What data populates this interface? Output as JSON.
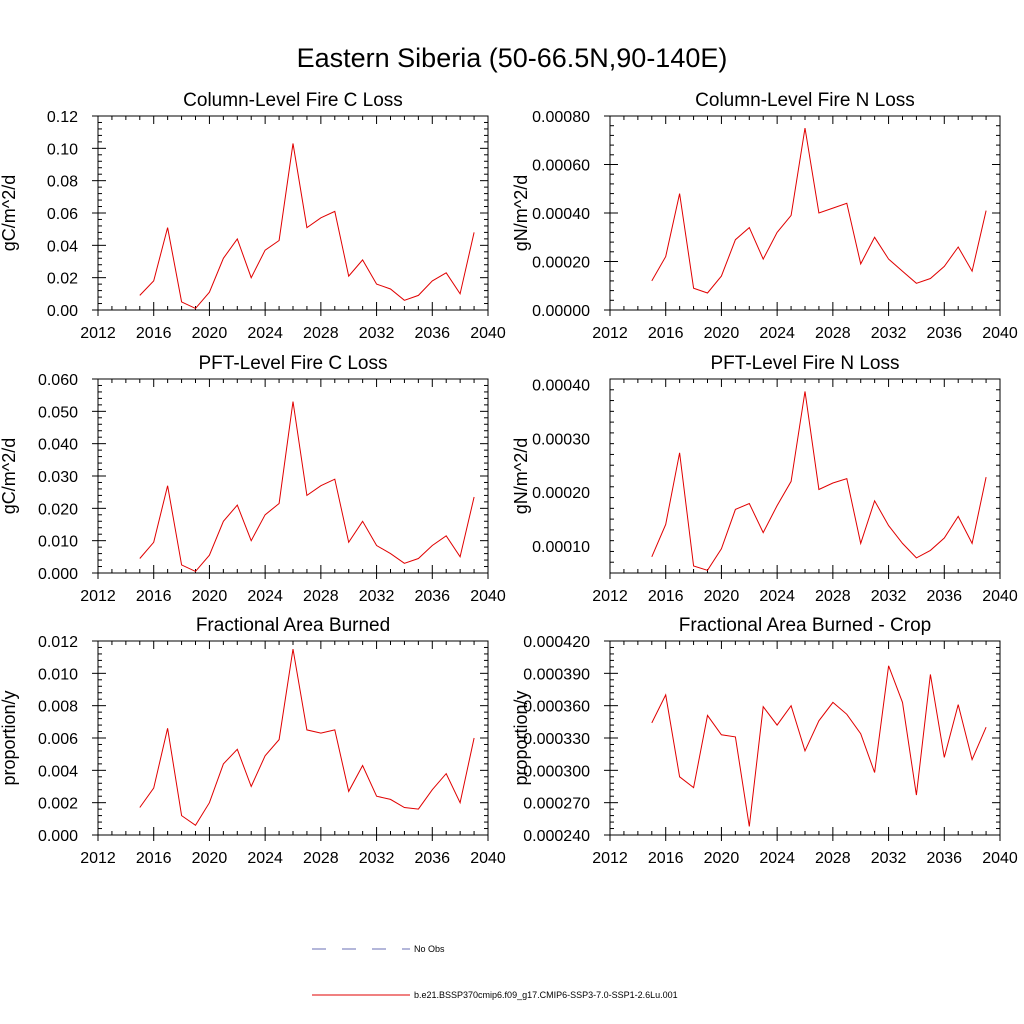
{
  "figure": {
    "title": "Eastern Siberia (50-66.5N,90-140E)",
    "legend": [
      {
        "label": "No Obs",
        "color": "#6a6fb5",
        "style": "dashed"
      },
      {
        "label": "b.e21.BSSP370cmip6.f09_g17.CMIP6-SSP3-7.0-SSP1-2.6Lu.001",
        "color": "#e00000",
        "style": "solid"
      }
    ]
  },
  "chart_data": [
    {
      "type": "line",
      "title": "Column-Level Fire C Loss",
      "ylabel": "gC/m^2/d",
      "xlim": [
        2012,
        2040
      ],
      "xticks": [
        "2012",
        "2016",
        "2020",
        "2024",
        "2028",
        "2032",
        "2036",
        "2040"
      ],
      "ylim": [
        0,
        0.12
      ],
      "yticks": [
        "0.00",
        "0.02",
        "0.04",
        "0.06",
        "0.08",
        "0.10",
        "0.12"
      ],
      "line_color": "#e00000",
      "x": [
        2015,
        2016,
        2017,
        2018,
        2019,
        2020,
        2021,
        2022,
        2023,
        2024,
        2025,
        2026,
        2027,
        2028,
        2029,
        2030,
        2031,
        2032,
        2033,
        2034,
        2035,
        2036,
        2037,
        2038,
        2039
      ],
      "series": [
        {
          "values": [
            0.009,
            0.018,
            0.051,
            0.005,
            0.001,
            0.011,
            0.032,
            0.044,
            0.02,
            0.037,
            0.043,
            0.103,
            0.051,
            0.057,
            0.061,
            0.021,
            0.031,
            0.016,
            0.013,
            0.006,
            0.009,
            0.018,
            0.023,
            0.01,
            0.048
          ]
        }
      ]
    },
    {
      "type": "line",
      "title": "Column-Level Fire N Loss",
      "ylabel": "gN/m^2/d",
      "xlim": [
        2012,
        2040
      ],
      "xticks": [
        "2012",
        "2016",
        "2020",
        "2024",
        "2028",
        "2032",
        "2036",
        "2040"
      ],
      "ylim": [
        0,
        0.0008
      ],
      "yticks": [
        "0.00000",
        "0.00020",
        "0.00040",
        "0.00060",
        "0.00080"
      ],
      "line_color": "#e00000",
      "x": [
        2015,
        2016,
        2017,
        2018,
        2019,
        2020,
        2021,
        2022,
        2023,
        2024,
        2025,
        2026,
        2027,
        2028,
        2029,
        2030,
        2031,
        2032,
        2033,
        2034,
        2035,
        2036,
        2037,
        2038,
        2039
      ],
      "series": [
        {
          "values": [
            0.00012,
            0.00022,
            0.00048,
            9e-05,
            7e-05,
            0.00014,
            0.00029,
            0.00034,
            0.00021,
            0.00032,
            0.00039,
            0.00075,
            0.0004,
            0.00042,
            0.00044,
            0.00019,
            0.0003,
            0.00021,
            0.00016,
            0.00011,
            0.00013,
            0.00018,
            0.00026,
            0.00016,
            0.00041
          ]
        }
      ]
    },
    {
      "type": "line",
      "title": "PFT-Level Fire C Loss",
      "ylabel": "gC/m^2/d",
      "xlim": [
        2012,
        2040
      ],
      "xticks": [
        "2012",
        "2016",
        "2020",
        "2024",
        "2028",
        "2032",
        "2036",
        "2040"
      ],
      "ylim": [
        0,
        0.06
      ],
      "yticks": [
        "0.000",
        "0.010",
        "0.020",
        "0.030",
        "0.040",
        "0.050",
        "0.060"
      ],
      "line_color": "#e00000",
      "x": [
        2015,
        2016,
        2017,
        2018,
        2019,
        2020,
        2021,
        2022,
        2023,
        2024,
        2025,
        2026,
        2027,
        2028,
        2029,
        2030,
        2031,
        2032,
        2033,
        2034,
        2035,
        2036,
        2037,
        2038,
        2039
      ],
      "series": [
        {
          "values": [
            0.0045,
            0.0095,
            0.027,
            0.0025,
            0.0005,
            0.0055,
            0.016,
            0.021,
            0.01,
            0.018,
            0.0215,
            0.053,
            0.024,
            0.027,
            0.029,
            0.0095,
            0.016,
            0.0085,
            0.006,
            0.003,
            0.0045,
            0.0085,
            0.0115,
            0.005,
            0.0235
          ]
        }
      ]
    },
    {
      "type": "line",
      "title": "PFT-Level Fire N Loss",
      "ylabel": "gN/m^2/d",
      "xlim": [
        2012,
        2040
      ],
      "xticks": [
        "2012",
        "2016",
        "2020",
        "2024",
        "2028",
        "2032",
        "2036",
        "2040"
      ],
      "ylim": [
        5e-05,
        0.00041
      ],
      "yticks": [
        "0.00010",
        "0.00020",
        "0.00030",
        "0.00040"
      ],
      "ytick_values": [
        0.0001,
        0.0002,
        0.0003,
        0.0004
      ],
      "line_color": "#e00000",
      "x": [
        2015,
        2016,
        2017,
        2018,
        2019,
        2020,
        2021,
        2022,
        2023,
        2024,
        2025,
        2026,
        2027,
        2028,
        2029,
        2030,
        2031,
        2032,
        2033,
        2034,
        2035,
        2036,
        2037,
        2038,
        2039
      ],
      "series": [
        {
          "values": [
            8e-05,
            0.00014,
            0.000273,
            6.3e-05,
            5.5e-05,
            9.5e-05,
            0.000168,
            0.000179,
            0.000125,
            0.000175,
            0.00022,
            0.000387,
            0.000205,
            0.000217,
            0.000225,
            0.000105,
            0.000184,
            0.000138,
            0.000105,
            7.8e-05,
            9.2e-05,
            0.000115,
            0.000155,
            0.000105,
            0.000228
          ]
        }
      ]
    },
    {
      "type": "line",
      "title": "Fractional Area Burned",
      "ylabel": "proportion/y",
      "xlim": [
        2012,
        2040
      ],
      "xticks": [
        "2012",
        "2016",
        "2020",
        "2024",
        "2028",
        "2032",
        "2036",
        "2040"
      ],
      "ylim": [
        0,
        0.012
      ],
      "yticks": [
        "0.000",
        "0.002",
        "0.004",
        "0.006",
        "0.008",
        "0.010",
        "0.012"
      ],
      "line_color": "#e00000",
      "x": [
        2015,
        2016,
        2017,
        2018,
        2019,
        2020,
        2021,
        2022,
        2023,
        2024,
        2025,
        2026,
        2027,
        2028,
        2029,
        2030,
        2031,
        2032,
        2033,
        2034,
        2035,
        2036,
        2037,
        2038,
        2039
      ],
      "series": [
        {
          "values": [
            0.0017,
            0.0029,
            0.0066,
            0.0012,
            0.0006,
            0.002,
            0.0044,
            0.0053,
            0.003,
            0.0049,
            0.0059,
            0.0115,
            0.0065,
            0.0063,
            0.0065,
            0.0027,
            0.0043,
            0.0024,
            0.0022,
            0.0017,
            0.0016,
            0.0028,
            0.0038,
            0.002,
            0.006
          ]
        }
      ]
    },
    {
      "type": "line",
      "title": "Fractional Area Burned - Crop",
      "ylabel": "proportion/y",
      "xlim": [
        2012,
        2040
      ],
      "xticks": [
        "2012",
        "2016",
        "2020",
        "2024",
        "2028",
        "2032",
        "2036",
        "2040"
      ],
      "ylim": [
        0.00024,
        0.00042
      ],
      "yticks": [
        "0.000240",
        "0.000270",
        "0.000300",
        "0.000330",
        "0.000360",
        "0.000390",
        "0.000420"
      ],
      "line_color": "#e00000",
      "x": [
        2015,
        2016,
        2017,
        2018,
        2019,
        2020,
        2021,
        2022,
        2023,
        2024,
        2025,
        2026,
        2027,
        2028,
        2029,
        2030,
        2031,
        2032,
        2033,
        2034,
        2035,
        2036,
        2037,
        2038,
        2039
      ],
      "series": [
        {
          "values": [
            0.000344,
            0.00037,
            0.000294,
            0.000284,
            0.000351,
            0.000333,
            0.000331,
            0.000248,
            0.000359,
            0.000342,
            0.00036,
            0.000318,
            0.000346,
            0.000363,
            0.000352,
            0.000334,
            0.000298,
            0.000397,
            0.000363,
            0.000277,
            0.000389,
            0.000312,
            0.000361,
            0.00031,
            0.00034
          ]
        }
      ]
    }
  ]
}
